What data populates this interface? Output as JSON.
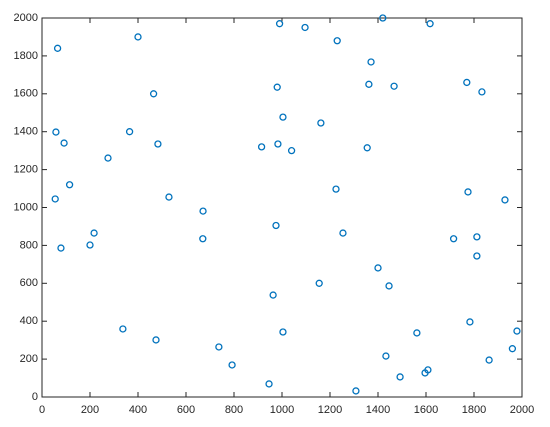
{
  "chart_data": {
    "type": "scatter",
    "color": "#0072BD",
    "grid": false,
    "x": [
      65,
      400,
      990,
      1096,
      1230,
      1420,
      1617,
      1371,
      1770,
      1833,
      980,
      1362,
      1467,
      465,
      58,
      92,
      365,
      483,
      275,
      1004,
      1162,
      915,
      983,
      1040,
      1355,
      115,
      55,
      529,
      1225,
      1775,
      1929,
      671,
      975,
      1254,
      1715,
      1812,
      217,
      200,
      79,
      670,
      1812,
      1400,
      1155,
      1446,
      963,
      1783,
      337,
      1004,
      1562,
      1979,
      475,
      737,
      1433,
      1863,
      1960,
      792,
      946,
      1308,
      1492,
      1596,
      1608
    ],
    "values": [
      1840,
      1900,
      1970,
      1950,
      1880,
      2000,
      1970,
      1768,
      1660,
      1610,
      1635,
      1650,
      1640,
      1600,
      1398,
      1340,
      1400,
      1335,
      1261,
      1477,
      1446,
      1320,
      1335,
      1300,
      1315,
      1120,
      1045,
      1055,
      1097,
      1082,
      1040,
      981,
      905,
      865,
      835,
      845,
      865,
      802,
      786,
      835,
      744,
      681,
      600,
      586,
      538,
      396,
      359,
      343,
      338,
      348,
      301,
      264,
      216,
      195,
      255,
      169,
      69,
      32,
      106,
      127,
      143
    ],
    "xlim": [
      0,
      2000
    ],
    "ylim": [
      0,
      2000
    ],
    "xticks": [
      0,
      200,
      400,
      600,
      800,
      1000,
      1200,
      1400,
      1600,
      1800,
      2000
    ],
    "yticks": [
      0,
      200,
      400,
      600,
      800,
      1000,
      1200,
      1400,
      1600,
      1800,
      2000
    ]
  }
}
